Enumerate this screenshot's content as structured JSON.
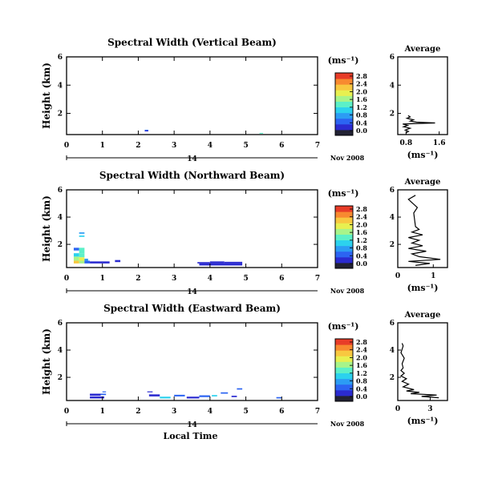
{
  "chart_data": {
    "type": "heatmap",
    "colorbar": {
      "unit": "(ms⁻¹)",
      "tick_labels": [
        "0.0",
        "0.4",
        "0.8",
        "1.2",
        "1.6",
        "2.0",
        "2.4",
        "2.8"
      ],
      "range": [
        0,
        2.8
      ],
      "colors": [
        "#222233",
        "#2b2bd0",
        "#2c64f2",
        "#2c9cf4",
        "#2cd2ee",
        "#5cf0c8",
        "#a8f48a",
        "#e8f050",
        "#f8c840",
        "#f88a30",
        "#e83c28"
      ]
    },
    "xlabel": "Local Time",
    "date_label": "Nov 2008",
    "day_label": "14",
    "xticks": [
      "0",
      "1",
      "2",
      "3",
      "4",
      "5",
      "6",
      "7"
    ],
    "xlim": [
      0,
      7
    ],
    "average_panel": {
      "title": "Average",
      "xlabel": "(ms⁻¹)"
    },
    "panels": [
      {
        "title": "Spectral Width (Vertical Beam)",
        "ylabel": "Height (km)",
        "yticks": [
          "2",
          "4",
          "6"
        ],
        "ylim": [
          0.5,
          6
        ],
        "cells": [
          {
            "t0": 2.18,
            "t1": 2.28,
            "h0": 0.78,
            "h1": 0.84,
            "v": 0.8
          },
          {
            "t0": 2.18,
            "t1": 2.28,
            "h0": 0.72,
            "h1": 0.78,
            "v": 0.4
          },
          {
            "t0": 5.38,
            "t1": 5.48,
            "h0": 0.56,
            "h1": 0.62,
            "v": 1.4
          }
        ],
        "avg_xlim": [
          0.6,
          1.8
        ],
        "avg_xticks": [
          "0.8",
          "1.6"
        ],
        "avg_yticks": [
          "2",
          "4",
          "6"
        ],
        "avg_profile": [
          [
            0.8,
            0.62
          ],
          [
            0.86,
            0.72
          ],
          [
            0.78,
            0.82
          ],
          [
            0.9,
            0.95
          ],
          [
            0.74,
            1.05
          ],
          [
            0.84,
            1.15
          ],
          [
            0.72,
            1.25
          ],
          [
            1.5,
            1.32
          ],
          [
            1.05,
            1.38
          ],
          [
            0.9,
            1.46
          ],
          [
            0.98,
            1.55
          ],
          [
            0.82,
            1.65
          ],
          [
            0.9,
            1.75
          ],
          [
            0.85,
            1.85
          ]
        ]
      },
      {
        "title": "Spectral Width (Northward Beam)",
        "ylabel": "Height (km)",
        "yticks": [
          "2",
          "4",
          "6"
        ],
        "ylim": [
          0.3,
          6
        ],
        "cells": [
          {
            "t0": 0.35,
            "t1": 0.5,
            "h0": 2.78,
            "h1": 2.88,
            "v": 1.0
          },
          {
            "t0": 0.35,
            "t1": 0.5,
            "h0": 2.55,
            "h1": 2.65,
            "v": 1.2
          },
          {
            "t0": 0.2,
            "t1": 0.35,
            "h0": 1.55,
            "h1": 1.75,
            "v": 0.8
          },
          {
            "t0": 0.35,
            "t1": 0.5,
            "h0": 1.35,
            "h1": 1.75,
            "v": 1.4
          },
          {
            "t0": 0.2,
            "t1": 0.35,
            "h0": 1.1,
            "h1": 1.35,
            "v": 1.2
          },
          {
            "t0": 0.35,
            "t1": 0.5,
            "h0": 1.05,
            "h1": 1.35,
            "v": 1.6
          },
          {
            "t0": 0.2,
            "t1": 0.35,
            "h0": 0.8,
            "h1": 1.1,
            "v": 1.8
          },
          {
            "t0": 0.35,
            "t1": 0.5,
            "h0": 0.8,
            "h1": 1.05,
            "v": 2.0
          },
          {
            "t0": 0.5,
            "t1": 0.6,
            "h0": 0.8,
            "h1": 0.95,
            "v": 1.0
          },
          {
            "t0": 0.2,
            "t1": 0.35,
            "h0": 0.6,
            "h1": 0.8,
            "v": 2.4
          },
          {
            "t0": 0.35,
            "t1": 0.5,
            "h0": 0.6,
            "h1": 0.8,
            "v": 1.8
          },
          {
            "t0": 0.5,
            "t1": 0.65,
            "h0": 0.6,
            "h1": 0.8,
            "v": 0.8
          },
          {
            "t0": 0.65,
            "t1": 0.95,
            "h0": 0.6,
            "h1": 0.75,
            "v": 0.5
          },
          {
            "t0": 0.95,
            "t1": 1.2,
            "h0": 0.6,
            "h1": 0.75,
            "v": 0.4
          },
          {
            "t0": 1.35,
            "t1": 1.5,
            "h0": 0.7,
            "h1": 0.85,
            "v": 0.5
          },
          {
            "t0": 3.65,
            "t1": 4.0,
            "h0": 0.6,
            "h1": 0.7,
            "v": 0.4
          },
          {
            "t0": 4.0,
            "t1": 4.4,
            "h0": 0.6,
            "h1": 0.75,
            "v": 0.5
          },
          {
            "t0": 4.4,
            "t1": 4.9,
            "h0": 0.6,
            "h1": 0.72,
            "v": 0.4
          },
          {
            "t0": 3.7,
            "t1": 4.9,
            "h0": 0.45,
            "h1": 0.6,
            "v": 0.5
          }
        ],
        "avg_xlim": [
          0,
          1.4
        ],
        "avg_xticks": [
          "0",
          "1"
        ],
        "avg_yticks": [
          "2",
          "4",
          "6"
        ],
        "avg_profile": [
          [
            0.5,
            0.45
          ],
          [
            0.9,
            0.6
          ],
          [
            0.3,
            0.75
          ],
          [
            1.2,
            0.9
          ],
          [
            0.6,
            1.1
          ],
          [
            0.4,
            1.3
          ],
          [
            0.8,
            1.5
          ],
          [
            0.3,
            1.7
          ],
          [
            0.7,
            1.9
          ],
          [
            0.4,
            2.1
          ],
          [
            0.6,
            2.3
          ],
          [
            0.3,
            2.5
          ],
          [
            0.7,
            2.7
          ],
          [
            0.4,
            2.9
          ],
          [
            0.6,
            3.1
          ],
          [
            0.5,
            3.3
          ],
          [
            0.45,
            4.3
          ],
          [
            0.55,
            4.7
          ],
          [
            0.3,
            5.3
          ],
          [
            0.5,
            5.6
          ]
        ]
      },
      {
        "title": "Spectral Width (Eastward Beam)",
        "ylabel": "Height (km)",
        "yticks": [
          "2",
          "4",
          "6"
        ],
        "ylim": [
          0.3,
          6
        ],
        "cells": [
          {
            "t0": 0.65,
            "t1": 0.95,
            "h0": 0.65,
            "h1": 0.8,
            "v": 0.4
          },
          {
            "t0": 0.95,
            "t1": 1.1,
            "h0": 0.7,
            "h1": 0.8,
            "v": 0.8
          },
          {
            "t0": 0.65,
            "t1": 1.05,
            "h0": 0.45,
            "h1": 0.6,
            "v": 0.5
          },
          {
            "t0": 1.0,
            "t1": 1.1,
            "h0": 0.9,
            "h1": 0.97,
            "v": 0.8
          },
          {
            "t0": 2.25,
            "t1": 2.4,
            "h0": 0.9,
            "h1": 0.97,
            "v": 0.4
          },
          {
            "t0": 2.3,
            "t1": 2.6,
            "h0": 0.6,
            "h1": 0.75,
            "v": 0.5
          },
          {
            "t0": 2.6,
            "t1": 2.9,
            "h0": 0.45,
            "h1": 0.58,
            "v": 1.2
          },
          {
            "t0": 3.0,
            "t1": 3.3,
            "h0": 0.6,
            "h1": 0.72,
            "v": 0.8
          },
          {
            "t0": 3.35,
            "t1": 3.7,
            "h0": 0.45,
            "h1": 0.58,
            "v": 0.4
          },
          {
            "t0": 3.7,
            "t1": 4.0,
            "h0": 0.55,
            "h1": 0.68,
            "v": 0.8
          },
          {
            "t0": 4.05,
            "t1": 4.2,
            "h0": 0.6,
            "h1": 0.7,
            "v": 1.2
          },
          {
            "t0": 4.3,
            "t1": 4.5,
            "h0": 0.8,
            "h1": 0.9,
            "v": 0.8
          },
          {
            "t0": 4.75,
            "t1": 4.9,
            "h0": 1.1,
            "h1": 1.2,
            "v": 0.8
          },
          {
            "t0": 4.6,
            "t1": 4.75,
            "h0": 0.55,
            "h1": 0.65,
            "v": 0.4
          },
          {
            "t0": 5.85,
            "t1": 6.0,
            "h0": 0.45,
            "h1": 0.55,
            "v": 0.8
          }
        ],
        "avg_xlim": [
          0,
          4.6
        ],
        "avg_xticks": [
          "0",
          "3"
        ],
        "avg_yticks": [
          "2",
          "4",
          "6"
        ],
        "avg_profile": [
          [
            3.8,
            0.5
          ],
          [
            2.2,
            0.6
          ],
          [
            3.6,
            0.7
          ],
          [
            1.2,
            0.8
          ],
          [
            2.0,
            0.9
          ],
          [
            0.8,
            1.0
          ],
          [
            1.5,
            1.1
          ],
          [
            0.5,
            1.3
          ],
          [
            1.0,
            1.5
          ],
          [
            0.4,
            1.7
          ],
          [
            0.8,
            1.9
          ],
          [
            0.3,
            2.1
          ],
          [
            0.6,
            2.3
          ],
          [
            0.3,
            2.5
          ],
          [
            0.5,
            2.7
          ],
          [
            0.4,
            3.0
          ],
          [
            0.6,
            3.4
          ],
          [
            0.3,
            3.8
          ],
          [
            0.5,
            4.3
          ],
          [
            0.4,
            4.5
          ]
        ]
      }
    ]
  }
}
